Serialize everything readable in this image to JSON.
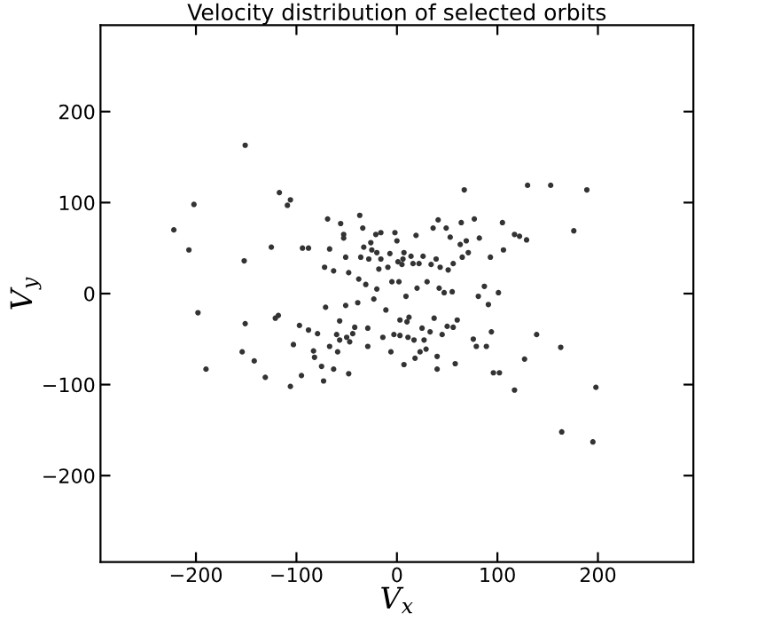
{
  "chart_data": {
    "type": "scatter",
    "title": "Velocity distribution of selected orbits",
    "xlabel": "V$_{x}$",
    "ylabel": "V$_{y}$",
    "xlim": [
      -295,
      295
    ],
    "ylim": [
      -295,
      295
    ],
    "xticks": [
      -200,
      -100,
      0,
      100,
      200
    ],
    "yticks": [
      -200,
      -100,
      0,
      100,
      200
    ],
    "grid": false,
    "marker": "circle",
    "series": [
      {
        "color": "#333333",
        "x": [
          -222,
          -207,
          -202,
          -198,
          -190,
          -151,
          -152,
          -151,
          -154,
          -142,
          -131,
          -117,
          -125,
          -118,
          -121,
          -109,
          -106,
          -106,
          -103,
          -95,
          -97,
          -94,
          -88,
          -88,
          -83,
          -82,
          -79,
          -75,
          -73,
          -72,
          -71,
          -69,
          -67,
          -67,
          -63,
          -63,
          -60,
          -59,
          -57,
          -57,
          -56,
          -53,
          -53,
          -51,
          -51,
          -50,
          -48,
          -48,
          -47,
          -44,
          -42,
          -39,
          -38,
          -37,
          -36,
          -34,
          -33,
          -31,
          -29,
          -29,
          -28,
          -26,
          -25,
          -23,
          -21,
          -20,
          -20,
          -18,
          -16,
          -16,
          -14,
          -11,
          -9,
          -7,
          -6,
          -5,
          -3,
          -2,
          0,
          1,
          2,
          3,
          3,
          5,
          6,
          7,
          7,
          9,
          10,
          11,
          12,
          14,
          16,
          17,
          18,
          19,
          20,
          22,
          23,
          25,
          26,
          27,
          29,
          30,
          33,
          34,
          36,
          37,
          39,
          40,
          40,
          41,
          42,
          43,
          45,
          47,
          49,
          50,
          51,
          53,
          55,
          56,
          56,
          58,
          60,
          63,
          64,
          65,
          67,
          69,
          71,
          76,
          77,
          79,
          81,
          82,
          87,
          89,
          91,
          93,
          94,
          96,
          101,
          102,
          105,
          106,
          117,
          117,
          122,
          127,
          129,
          130,
          139,
          153,
          163,
          164,
          176,
          189,
          195,
          198
        ],
        "values": [
          70,
          48,
          98,
          -21,
          -83,
          163,
          36,
          -33,
          -64,
          -74,
          -92,
          111,
          51,
          -24,
          -27,
          97,
          103,
          -102,
          -56,
          -90,
          -35,
          50,
          50,
          -40,
          -63,
          -70,
          -44,
          -80,
          -96,
          29,
          -15,
          82,
          49,
          -58,
          -83,
          25,
          -45,
          -64,
          -30,
          -51,
          77,
          65,
          61,
          40,
          -13,
          -48,
          23,
          -88,
          -53,
          -44,
          -37,
          -10,
          16,
          86,
          40,
          72,
          51,
          10,
          -38,
          -58,
          38,
          56,
          48,
          -6,
          65,
          45,
          5,
          27,
          67,
          38,
          -48,
          -18,
          29,
          44,
          -64,
          13,
          -45,
          67,
          58,
          35,
          13,
          -29,
          -46,
          32,
          38,
          45,
          -78,
          -3,
          -31,
          -48,
          -26,
          41,
          33,
          -51,
          -71,
          64,
          6,
          33,
          -64,
          -38,
          41,
          -51,
          -61,
          13,
          -42,
          32,
          72,
          -27,
          38,
          -69,
          -83,
          81,
          6,
          29,
          -45,
          1,
          72,
          -36,
          26,
          62,
          2,
          33,
          -37,
          -77,
          -29,
          54,
          78,
          40,
          114,
          58,
          45,
          -50,
          82,
          -58,
          -3,
          61,
          8,
          -58,
          -12,
          40,
          -42,
          -87,
          1,
          -87,
          78,
          48,
          -106,
          65,
          63,
          -72,
          59,
          119,
          -45,
          119,
          -59,
          -152,
          69,
          114,
          -163,
          -103
        ]
      }
    ]
  }
}
